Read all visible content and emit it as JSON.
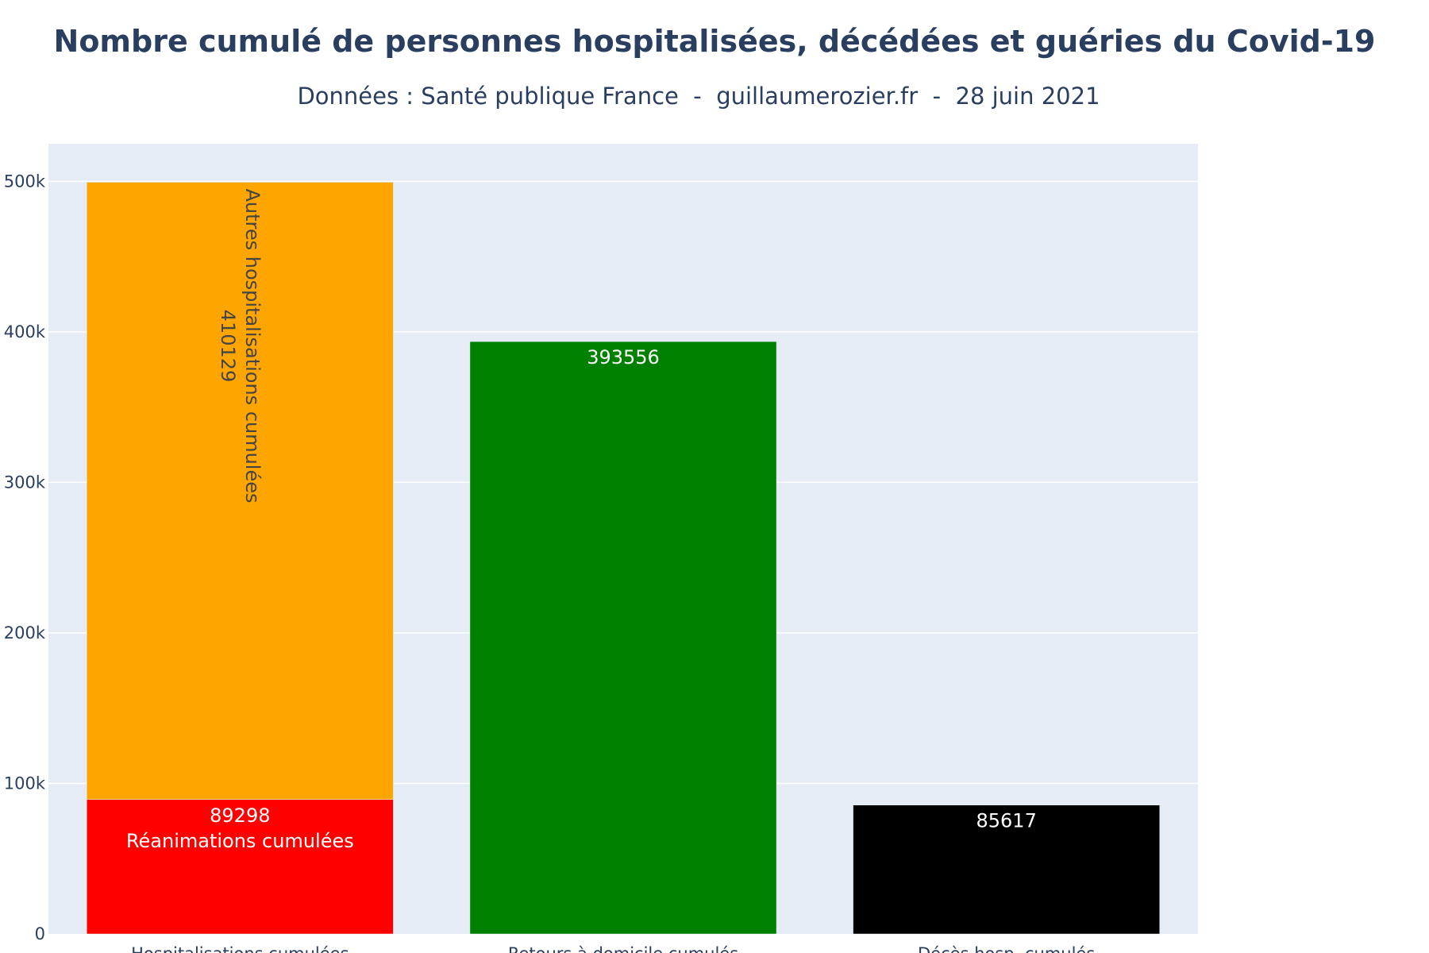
{
  "chart_data": {
    "type": "bar",
    "barmode": "stack",
    "title": "Nombre cumulé de personnes hospitalisées, décédées et guéries du Covid-19",
    "subtitle": "Données : Santé publique France  -  guillaumerozier.fr  -  28 juin 2021",
    "categories": [
      "Hospitalisations cumulées",
      "Retours à domicile cumulés",
      "Décès hosp. cumulés"
    ],
    "ylim": [
      0,
      525000
    ],
    "yticks": [
      0,
      100000,
      200000,
      300000,
      400000,
      500000
    ],
    "ytick_labels": [
      "0",
      "100k",
      "200k",
      "300k",
      "400k",
      "500k"
    ],
    "grid": true,
    "legend": "none",
    "background": "#e5ecf6",
    "series": [
      {
        "category": "Hospitalisations cumulées",
        "base": 0,
        "value": 89298,
        "color": "#ff0000",
        "label_lines": [
          "89298",
          "Réanimations cumulées"
        ],
        "label_color": "#ffffff",
        "label_orientation": "horizontal"
      },
      {
        "category": "Hospitalisations cumulées",
        "base": 89298,
        "value": 410129,
        "color": "#ffa500",
        "label_lines": [
          "410129",
          "Autres hospitalisations cumulées"
        ],
        "label_color": "#444444",
        "label_orientation": "vertical"
      },
      {
        "category": "Retours à domicile cumulés",
        "base": 0,
        "value": 393556,
        "color": "#008000",
        "label_lines": [
          "393556"
        ],
        "label_color": "#ffffff",
        "label_orientation": "horizontal"
      },
      {
        "category": "Décès hosp. cumulés",
        "base": 0,
        "value": 85617,
        "color": "#000000",
        "label_lines": [
          "85617"
        ],
        "label_color": "#ffffff",
        "label_orientation": "horizontal"
      }
    ]
  }
}
